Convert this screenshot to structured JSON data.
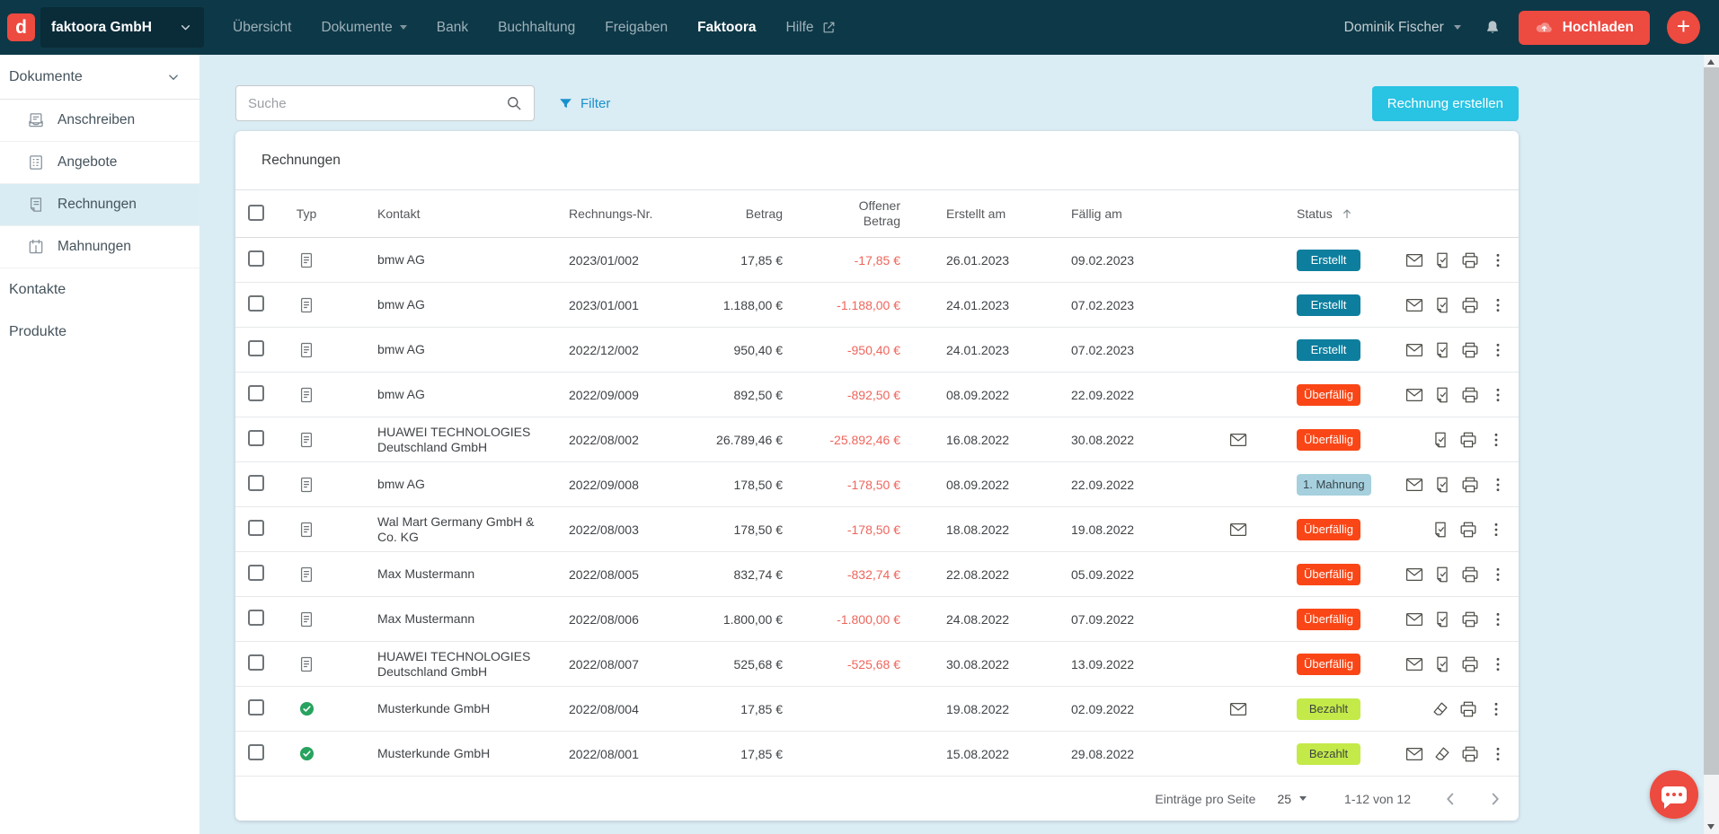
{
  "topnav": {
    "logo_letter": "d",
    "company": "faktoora GmbH",
    "items": [
      {
        "label": "Übersicht",
        "active": false,
        "dropdown": false,
        "external": false
      },
      {
        "label": "Dokumente",
        "active": false,
        "dropdown": true,
        "external": false
      },
      {
        "label": "Bank",
        "active": false,
        "dropdown": false,
        "external": false
      },
      {
        "label": "Buchhaltung",
        "active": false,
        "dropdown": false,
        "external": false
      },
      {
        "label": "Freigaben",
        "active": false,
        "dropdown": false,
        "external": false
      },
      {
        "label": "Faktoora",
        "active": true,
        "dropdown": false,
        "external": false
      },
      {
        "label": "Hilfe",
        "active": false,
        "dropdown": false,
        "external": true
      }
    ],
    "user_name": "Dominik Fischer",
    "upload_label": "Hochladen"
  },
  "sidebar": {
    "section_label": "Dokumente",
    "items": [
      {
        "icon": "letter-icon",
        "label": "Anschreiben",
        "active": false
      },
      {
        "icon": "offer-icon",
        "label": "Angebote",
        "active": false
      },
      {
        "icon": "invoice-icon",
        "label": "Rechnungen",
        "active": true
      },
      {
        "icon": "reminder-icon",
        "label": "Mahnungen",
        "active": false
      }
    ],
    "links": [
      {
        "label": "Kontakte"
      },
      {
        "label": "Produkte"
      }
    ]
  },
  "toolbar": {
    "search_placeholder": "Suche",
    "filter_label": "Filter",
    "create_button_label": "Rechnung erstellen"
  },
  "table": {
    "title": "Rechnungen",
    "columns": {
      "typ": "Typ",
      "kontakt": "Kontakt",
      "rechnungs_nr": "Rechnungs-Nr.",
      "betrag": "Betrag",
      "offener_betrag": "Offener Betrag",
      "erstellt_am": "Erstellt am",
      "faellig_am": "Fällig am",
      "status": "Status"
    },
    "sorted_by": "status",
    "rows": [
      {
        "type": "invoice",
        "contact": "bmw AG",
        "number": "2023/01/002",
        "amount": "17,85 €",
        "open_amount": "-17,85 €",
        "created": "26.01.2023",
        "due": "09.02.2023",
        "sent": false,
        "status": "Erstellt",
        "status_variant": "teal",
        "actions": [
          "mail",
          "file",
          "print",
          "menu"
        ]
      },
      {
        "type": "invoice",
        "contact": "bmw AG",
        "number": "2023/01/001",
        "amount": "1.188,00 €",
        "open_amount": "-1.188,00 €",
        "created": "24.01.2023",
        "due": "07.02.2023",
        "sent": false,
        "status": "Erstellt",
        "status_variant": "teal",
        "actions": [
          "mail",
          "file",
          "print",
          "menu"
        ]
      },
      {
        "type": "invoice",
        "contact": "bmw AG",
        "number": "2022/12/002",
        "amount": "950,40 €",
        "open_amount": "-950,40 €",
        "created": "24.01.2023",
        "due": "07.02.2023",
        "sent": false,
        "status": "Erstellt",
        "status_variant": "teal",
        "actions": [
          "mail",
          "file",
          "print",
          "menu"
        ]
      },
      {
        "type": "invoice",
        "contact": "bmw AG",
        "number": "2022/09/009",
        "amount": "892,50 €",
        "open_amount": "-892,50 €",
        "created": "08.09.2022",
        "due": "22.09.2022",
        "sent": false,
        "status": "Überfällig",
        "status_variant": "red",
        "actions": [
          "mail",
          "file",
          "print",
          "menu"
        ]
      },
      {
        "type": "invoice",
        "contact": "HUAWEI TECHNOLOGIES Deutschland GmbH",
        "number": "2022/08/002",
        "amount": "26.789,46 €",
        "open_amount": "-25.892,46 €",
        "created": "16.08.2022",
        "due": "30.08.2022",
        "sent": true,
        "status": "Überfällig",
        "status_variant": "red",
        "actions": [
          "file",
          "print",
          "menu"
        ]
      },
      {
        "type": "invoice",
        "contact": "bmw AG",
        "number": "2022/09/008",
        "amount": "178,50 €",
        "open_amount": "-178,50 €",
        "created": "08.09.2022",
        "due": "22.09.2022",
        "sent": false,
        "status": "1. Mahnung",
        "status_variant": "lightblue",
        "actions": [
          "mail",
          "file",
          "print",
          "menu"
        ]
      },
      {
        "type": "invoice",
        "contact": "Wal Mart Germany GmbH & Co. KG",
        "number": "2022/08/003",
        "amount": "178,50 €",
        "open_amount": "-178,50 €",
        "created": "18.08.2022",
        "due": "19.08.2022",
        "sent": true,
        "status": "Überfällig",
        "status_variant": "red",
        "actions": [
          "file",
          "print",
          "menu"
        ]
      },
      {
        "type": "invoice",
        "contact": "Max Mustermann",
        "number": "2022/08/005",
        "amount": "832,74 €",
        "open_amount": "-832,74 €",
        "created": "22.08.2022",
        "due": "05.09.2022",
        "sent": false,
        "status": "Überfällig",
        "status_variant": "red",
        "actions": [
          "mail",
          "file",
          "print",
          "menu"
        ]
      },
      {
        "type": "invoice",
        "contact": "Max Mustermann",
        "number": "2022/08/006",
        "amount": "1.800,00 €",
        "open_amount": "-1.800,00 €",
        "created": "24.08.2022",
        "due": "07.09.2022",
        "sent": false,
        "status": "Überfällig",
        "status_variant": "red",
        "actions": [
          "mail",
          "file",
          "print",
          "menu"
        ]
      },
      {
        "type": "invoice",
        "contact": "HUAWEI TECHNOLOGIES Deutschland GmbH",
        "number": "2022/08/007",
        "amount": "525,68 €",
        "open_amount": "-525,68 €",
        "created": "30.08.2022",
        "due": "13.09.2022",
        "sent": false,
        "status": "Überfällig",
        "status_variant": "red",
        "actions": [
          "mail",
          "file",
          "print",
          "menu"
        ]
      },
      {
        "type": "paid",
        "contact": "Musterkunde GmbH",
        "number": "2022/08/004",
        "amount": "17,85 €",
        "open_amount": "",
        "created": "19.08.2022",
        "due": "02.09.2022",
        "sent": true,
        "status": "Bezahlt",
        "status_variant": "lime",
        "actions": [
          "eraser",
          "print",
          "menu"
        ]
      },
      {
        "type": "paid",
        "contact": "Musterkunde GmbH",
        "number": "2022/08/001",
        "amount": "17,85 €",
        "open_amount": "",
        "created": "15.08.2022",
        "due": "29.08.2022",
        "sent": false,
        "status": "Bezahlt",
        "status_variant": "lime",
        "actions": [
          "mail",
          "eraser",
          "print",
          "menu"
        ]
      }
    ]
  },
  "pagination": {
    "per_page_label": "Einträge pro Seite",
    "per_page_value": "25",
    "range_label": "1-12 von 12"
  },
  "colors": {
    "topnav_bg": "#0d3847",
    "page_bg": "#daecf4",
    "accent_red": "#ed4a40",
    "accent_cyan": "#29c3e3",
    "filter_blue": "#1791cb",
    "badge_erstellt": "#0e7e9e",
    "badge_ueberfaellig": "#fa4616",
    "badge_bezahlt": "#c3ea49",
    "badge_mahnung": "#a6d0dd",
    "negative_amount": "#ef655c",
    "paid_check_green": "#27a35f"
  }
}
